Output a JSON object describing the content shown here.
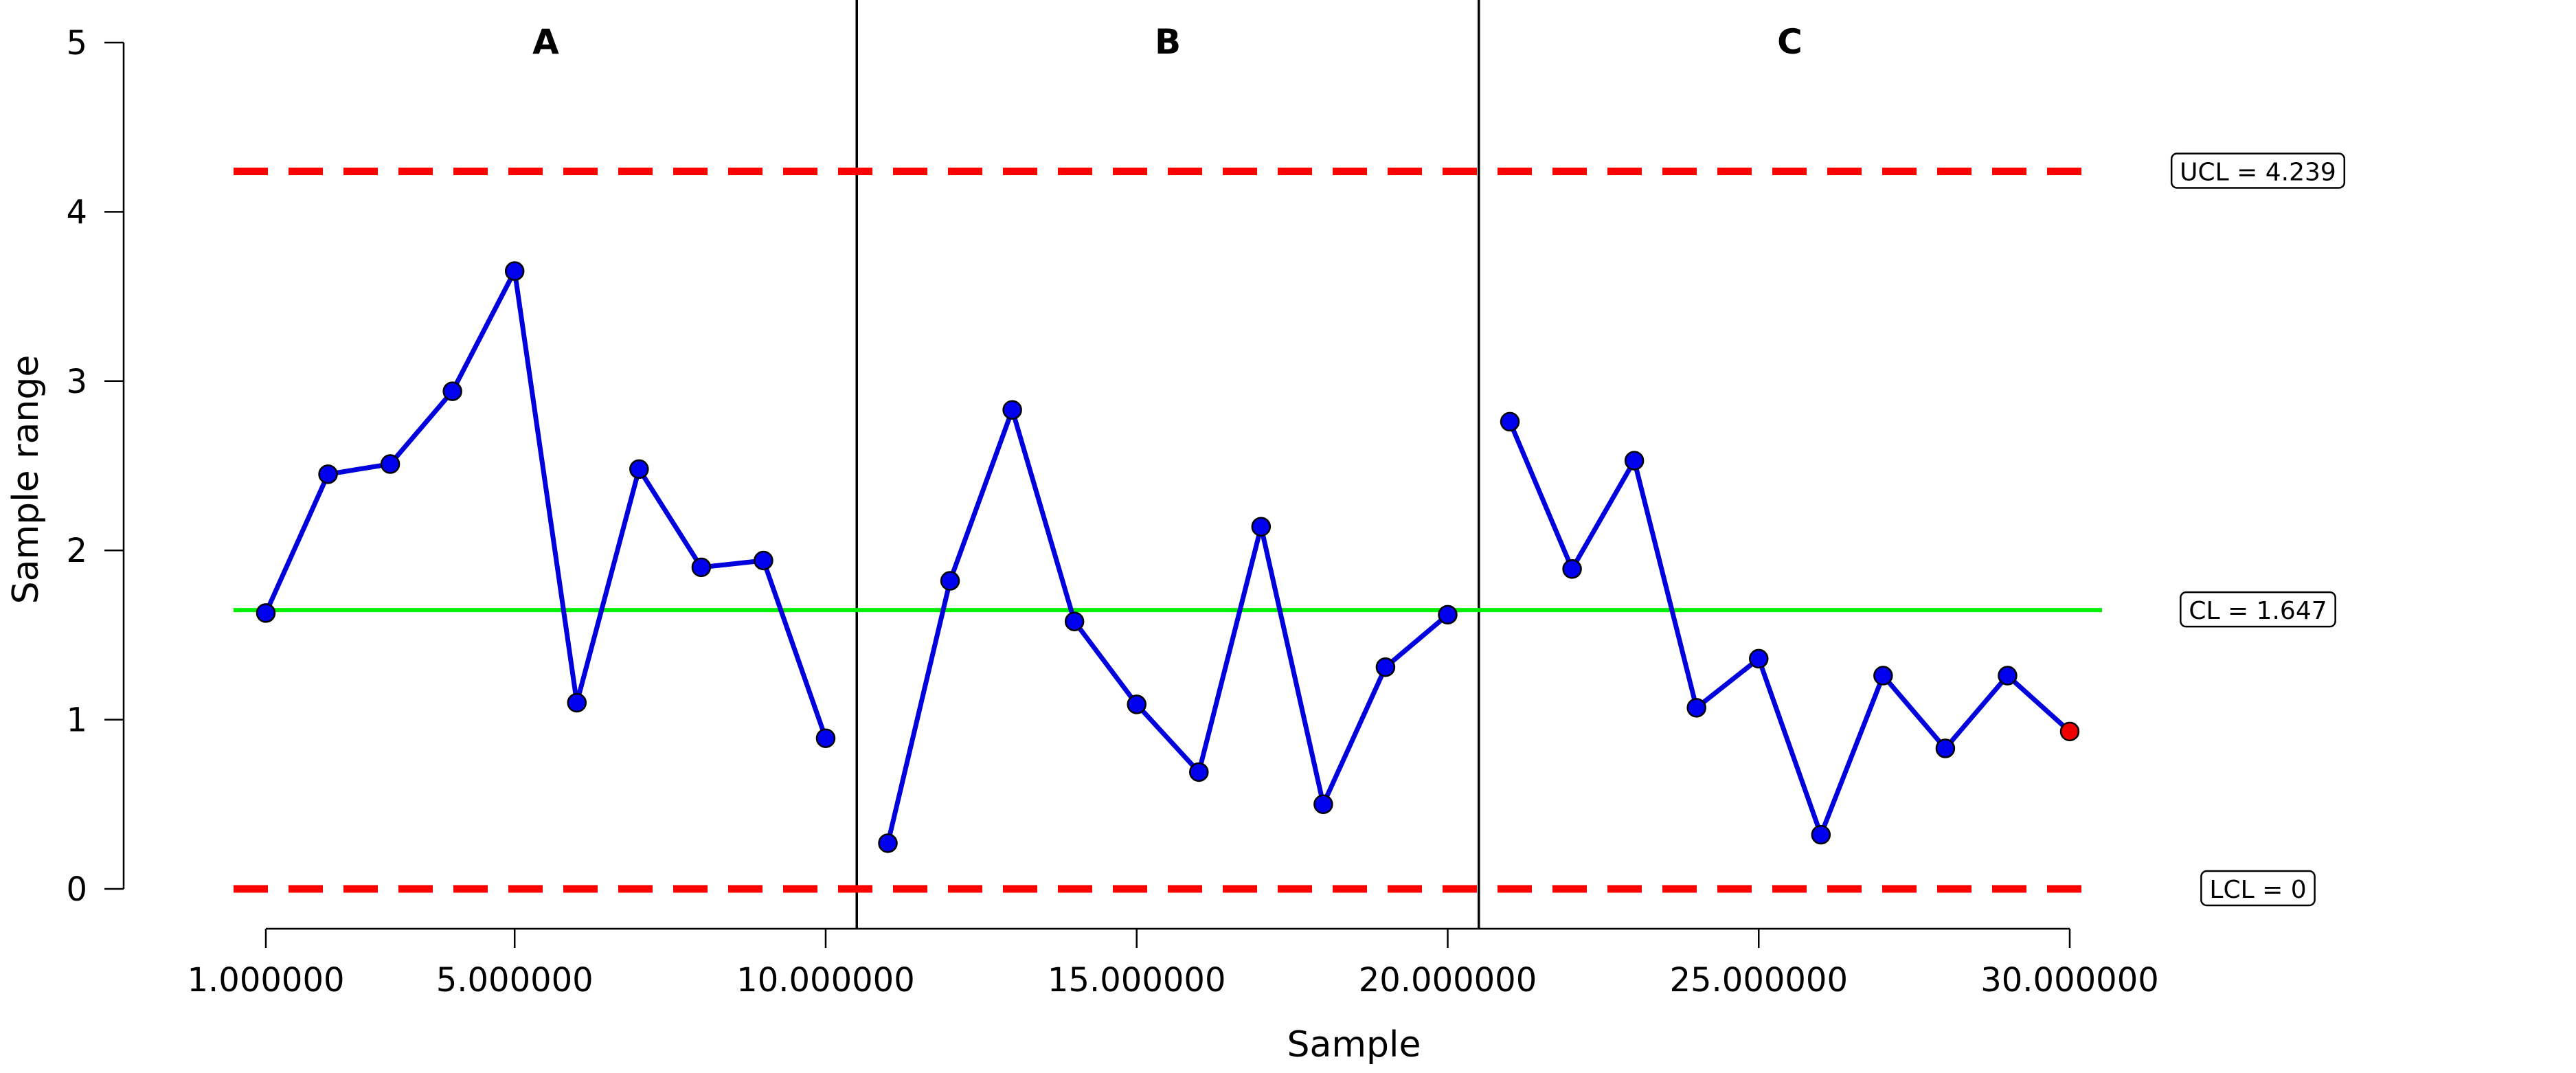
{
  "chart_data": {
    "type": "line",
    "title": "",
    "xlabel": "Sample",
    "ylabel": "Sample range",
    "xlim": [
      1,
      30
    ],
    "ylim": [
      0,
      5
    ],
    "x_tick_values": [
      1,
      5,
      10,
      15,
      20,
      25,
      30
    ],
    "x_tick_labels": [
      "1.000000",
      "5.000000",
      "10.000000",
      "15.000000",
      "20.000000",
      "25.000000",
      "30.000000"
    ],
    "y_tick_values": [
      0,
      1,
      2,
      3,
      4,
      5
    ],
    "y_tick_labels": [
      "0",
      "1",
      "2",
      "3",
      "4",
      "5"
    ],
    "grid": false,
    "phases": [
      {
        "label": "A",
        "start": 1,
        "end": 10
      },
      {
        "label": "B",
        "start": 11,
        "end": 20
      },
      {
        "label": "C",
        "start": 21,
        "end": 30
      }
    ],
    "phase_boundaries": [
      10.5,
      20.5
    ],
    "control_limits": [
      {
        "name": "UCL",
        "value": 4.239,
        "label": "UCL = 4.239",
        "style": "dashed",
        "color": "#ff0000"
      },
      {
        "name": "CL",
        "value": 1.647,
        "label": "CL = 1.647",
        "style": "solid",
        "color": "#00ee00"
      },
      {
        "name": "LCL",
        "value": 0,
        "label": "LCL = 0",
        "style": "dashed",
        "color": "#ff0000"
      }
    ],
    "series": [
      {
        "line_color": "#0000dd",
        "point_color": "#0000ee",
        "highlight_color": "#ee0000",
        "x": [
          1,
          2,
          3,
          4,
          5,
          6,
          7,
          8,
          9,
          10,
          11,
          12,
          13,
          14,
          15,
          16,
          17,
          18,
          19,
          20,
          21,
          22,
          23,
          24,
          25,
          26,
          27,
          28,
          29,
          30
        ],
        "values": [
          1.63,
          2.45,
          2.51,
          2.94,
          3.65,
          1.1,
          2.48,
          1.9,
          1.94,
          0.89,
          0.27,
          1.82,
          2.83,
          1.58,
          1.09,
          0.69,
          2.14,
          0.5,
          1.31,
          1.62,
          2.76,
          1.89,
          2.53,
          1.07,
          1.36,
          0.32,
          1.26,
          0.83,
          1.26,
          0.93
        ],
        "highlighted_points": [
          30
        ]
      }
    ]
  }
}
